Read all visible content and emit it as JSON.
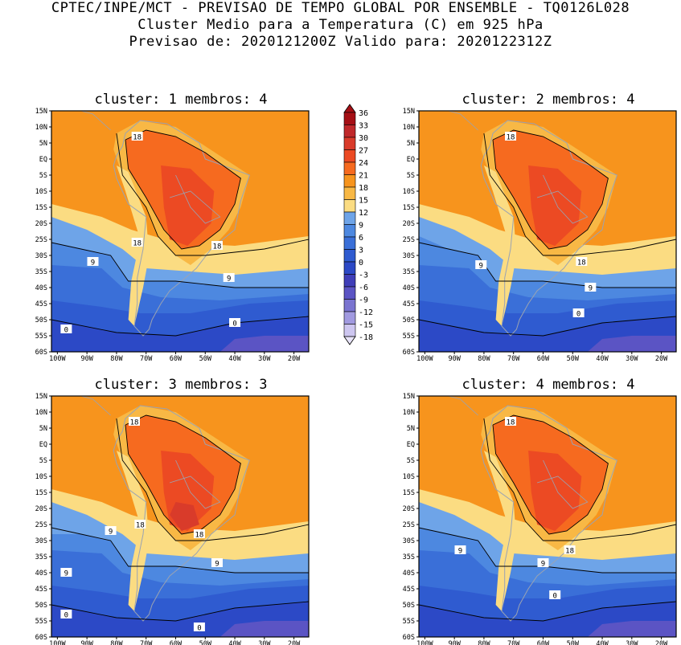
{
  "header": {
    "line1": "CPTEC/INPE/MCT - PREVISAO DE TEMPO GLOBAL POR ENSEMBLE - TQ0126L028",
    "line2": "Cluster Medio para a Temperatura (C) em 925 hPa",
    "line3": "Previsao de: 2020121200Z   Valido para: 2020122312Z"
  },
  "panels": [
    {
      "title": "cluster: 1  membros: 4",
      "contour_labels": [
        "18",
        "18",
        "18",
        "9",
        "9",
        "0",
        "0"
      ]
    },
    {
      "title": "cluster: 2  membros: 4",
      "contour_labels": [
        "18",
        "18",
        "9",
        "9",
        "0"
      ]
    },
    {
      "title": "cluster: 3  membros: 3",
      "contour_labels": [
        "18",
        "18",
        "18",
        "9",
        "9",
        "9",
        "0",
        "0"
      ]
    },
    {
      "title": "cluster: 4  membros: 4",
      "contour_labels": [
        "18",
        "18",
        "9",
        "9",
        "0"
      ]
    }
  ],
  "lat_labels": [
    "15N",
    "10N",
    "5N",
    "EQ",
    "5S",
    "10S",
    "15S",
    "20S",
    "25S",
    "30S",
    "35S",
    "40S",
    "45S",
    "50S",
    "55S",
    "60S"
  ],
  "lon_labels": [
    "100W",
    "90W",
    "80W",
    "70W",
    "60W",
    "50W",
    "40W",
    "30W",
    "20W"
  ],
  "colorbar": {
    "levels": [
      "36",
      "33",
      "30",
      "27",
      "24",
      "21",
      "18",
      "15",
      "12",
      "9",
      "6",
      "3",
      "0",
      "-3",
      "-6",
      "-9",
      "-12",
      "-15",
      "-18"
    ],
    "colors": [
      "#a50f15",
      "#c0282a",
      "#d93b2a",
      "#ec4a23",
      "#f66a1f",
      "#f7941d",
      "#f8b845",
      "#fbdc82",
      "#6ea4e8",
      "#4d88e0",
      "#3a6fd8",
      "#2f5bd0",
      "#2c49c6",
      "#3f3eb8",
      "#5b54c4",
      "#7a74d0",
      "#a19ae0",
      "#cdc6f0"
    ]
  }
}
